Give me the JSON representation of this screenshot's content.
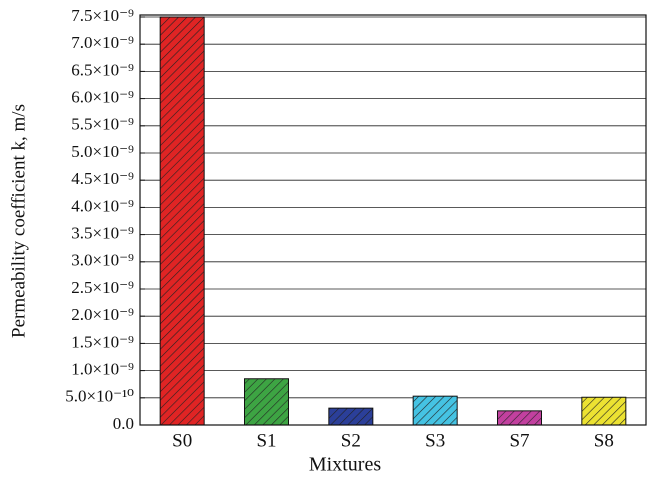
{
  "chart_data": {
    "type": "bar",
    "x_label": "Mixtures",
    "y_label": "Permeability coefficient k, m/s",
    "categories": [
      "S0",
      "S1",
      "S2",
      "S3",
      "S7",
      "S8"
    ],
    "values": [
      7.5e-09,
      8.5e-10,
      3.1e-10,
      5.3e-10,
      2.6e-10,
      5.1e-10
    ],
    "colors": [
      "#e02424",
      "#3da443",
      "#2b3f99",
      "#45c3e3",
      "#c2409f",
      "#ece232"
    ],
    "hatch": true,
    "ylim": [
      0,
      7.5e-09
    ],
    "yticks": [
      {
        "value": 0,
        "label": "0.0"
      },
      {
        "value": 5e-10,
        "label": "5.0×10⁻¹⁰"
      },
      {
        "value": 1e-09,
        "label": "1.0×10⁻⁹"
      },
      {
        "value": 1.5e-09,
        "label": "1.5×10⁻⁹"
      },
      {
        "value": 2e-09,
        "label": "2.0×10⁻⁹"
      },
      {
        "value": 2.5e-09,
        "label": "2.5×10⁻⁹"
      },
      {
        "value": 3e-09,
        "label": "3.0×10⁻⁹"
      },
      {
        "value": 3.5e-09,
        "label": "3.5×10⁻⁹"
      },
      {
        "value": 4e-09,
        "label": "4.0×10⁻⁹"
      },
      {
        "value": 4.5e-09,
        "label": "4.5×10⁻⁹"
      },
      {
        "value": 5e-09,
        "label": "5.0×10⁻⁹"
      },
      {
        "value": 5.5e-09,
        "label": "5.5×10⁻⁹"
      },
      {
        "value": 6e-09,
        "label": "6.0×10⁻⁹"
      },
      {
        "value": 6.5e-09,
        "label": "6.5×10⁻⁹"
      },
      {
        "value": 7e-09,
        "label": "7.0×10⁻⁹"
      },
      {
        "value": 7.5e-09,
        "label": "7.5×10⁻⁹"
      }
    ],
    "grid": true
  }
}
